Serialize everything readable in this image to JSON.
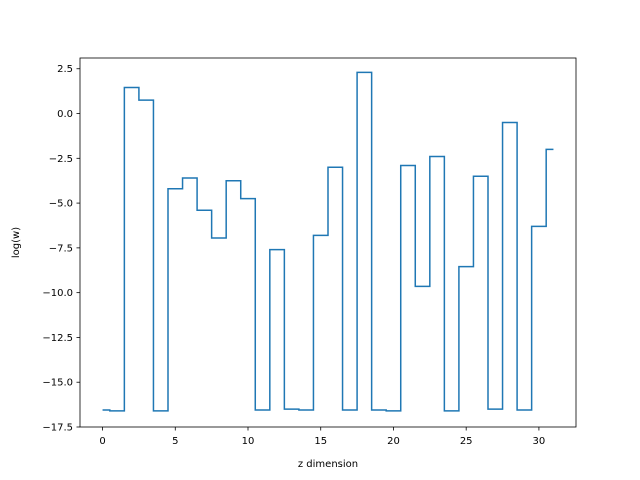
{
  "chart_data": {
    "type": "line",
    "drawstyle": "steps-mid",
    "title": "",
    "xlabel": "z dimension",
    "ylabel": "log(w)",
    "xlim": [
      -1.55,
      32.55
    ],
    "ylim": [
      -17.5,
      3.1
    ],
    "xticks": [
      0,
      5,
      10,
      15,
      20,
      25,
      30
    ],
    "xtick_labels": [
      "0",
      "5",
      "10",
      "15",
      "20",
      "25",
      "30"
    ],
    "yticks": [
      2.5,
      0.0,
      -2.5,
      -5.0,
      -7.5,
      -10.0,
      -12.5,
      -15.0,
      -17.5
    ],
    "ytick_labels": [
      "2.5",
      "0.0",
      "−2.5",
      "−5.0",
      "−7.5",
      "−10.0",
      "−12.5",
      "−15.0",
      "−17.5"
    ],
    "grid": false,
    "line_color": "#1f77b4",
    "series": [
      {
        "x": [
          0,
          1,
          2,
          3,
          4,
          5,
          6,
          7,
          8,
          9,
          10,
          11,
          12,
          13,
          14,
          15,
          16,
          17,
          18,
          19,
          20,
          21,
          22,
          23,
          24,
          25,
          26,
          27,
          28,
          29,
          30,
          31
        ],
        "values": [
          -16.55,
          -16.6,
          1.45,
          0.75,
          -16.6,
          -4.2,
          -3.6,
          -5.4,
          -6.95,
          -3.75,
          -4.75,
          -16.55,
          -7.6,
          -16.5,
          -16.55,
          -6.8,
          -3,
          -16.55,
          2.3,
          -16.55,
          -16.6,
          -2.9,
          -9.65,
          -2.4,
          -16.6,
          -8.55,
          -3.5,
          -16.5,
          -0.5,
          -16.55,
          -6.3,
          -2
        ]
      }
    ]
  }
}
